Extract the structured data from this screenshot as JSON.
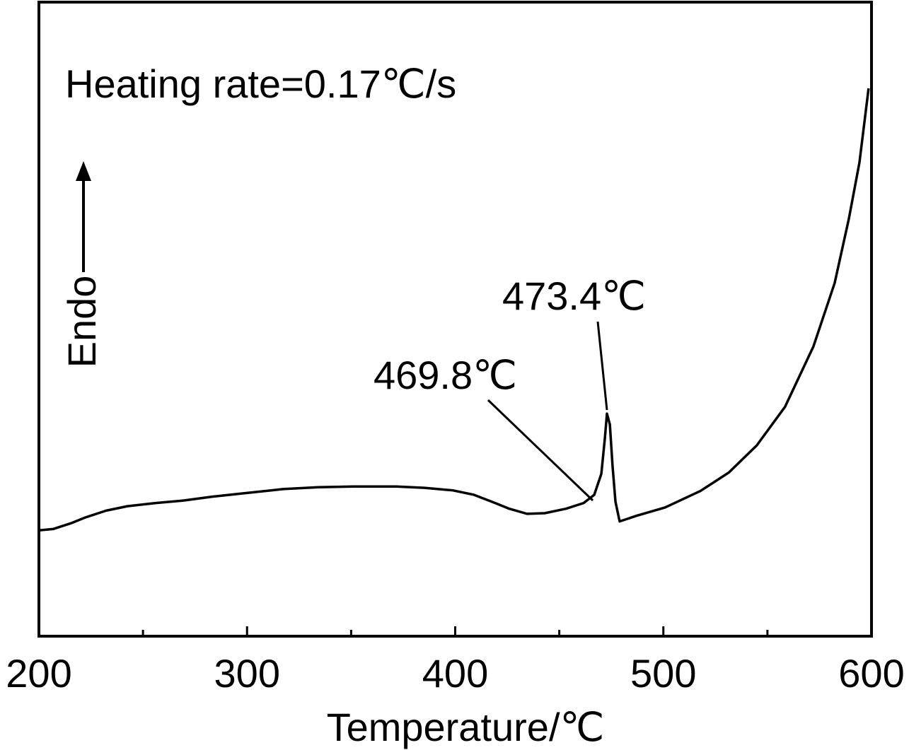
{
  "chart_data": {
    "type": "line",
    "title": "Heating rate=0.17℃/s",
    "xlabel": "Temperature/℃",
    "ylabel": "Endo",
    "annotations": [
      "473.4℃",
      "469.8℃"
    ],
    "xlim": [
      200,
      600
    ],
    "ylim": [
      0,
      100
    ],
    "xticks": [
      200,
      300,
      400,
      500,
      600
    ],
    "xminor_ticks": [
      250,
      350,
      450,
      550
    ],
    "series": [
      {
        "color": "#000000",
        "x": [
          200,
          206.8,
          215.3,
          222.1,
          232.3,
          242.5,
          256.1,
          269.7,
          283.3,
          300.3,
          317.3,
          334.2,
          351.2,
          371.6,
          385.2,
          398.8,
          409.0,
          419.2,
          426.0,
          434.5,
          443.0,
          453.2,
          461.7,
          466.8,
          470.2,
          471.9,
          472.9,
          474.3,
          475.6,
          477.0,
          479.0,
          487.2,
          500.8,
          517.8,
          531.4,
          544.9,
          558.5,
          572.1,
          582.3,
          589.1,
          594.2,
          598.6
        ],
        "values": [
          16.7,
          16.9,
          17.8,
          18.7,
          19.8,
          20.5,
          21.0,
          21.4,
          22.0,
          22.6,
          23.2,
          23.5,
          23.6,
          23.6,
          23.4,
          23.0,
          22.3,
          21.0,
          20.1,
          19.3,
          19.4,
          20.1,
          21.0,
          22.3,
          25.6,
          31.2,
          35.1,
          33.4,
          26.8,
          21.2,
          18.1,
          19.0,
          20.3,
          22.9,
          25.8,
          30.1,
          36.2,
          45.7,
          55.7,
          65.8,
          74.7,
          86.4
        ]
      }
    ]
  }
}
